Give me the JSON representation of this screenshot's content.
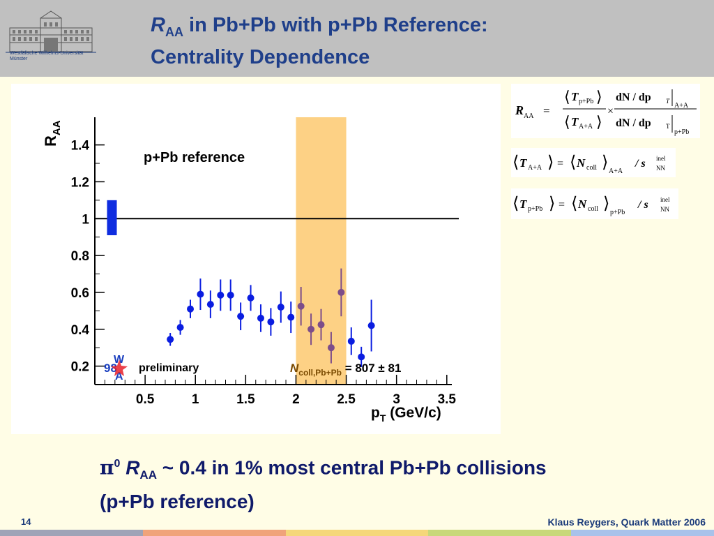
{
  "header": {
    "title_symbol": "R",
    "title_sub": "AA",
    "title_rest": " in Pb+Pb with p+Pb Reference:",
    "title_line2": "Centrality Dependence",
    "university_line1": "Westfälische Wilhelms-Universität",
    "university_line2": "Münster"
  },
  "chart_data": {
    "type": "scatter",
    "ylabel": "R",
    "ylabel_sub": "AA",
    "xlabel": "p",
    "xlabel_sub": "T",
    "xlabel_unit": " (GeV/c)",
    "xlim": [
      0.0,
      3.55
    ],
    "ylim": [
      0.1,
      1.55
    ],
    "x_ticks": [
      "0.5",
      "1",
      "1.5",
      "2",
      "2.5",
      "3",
      "3.5"
    ],
    "y_ticks": [
      "0.2",
      "0.4",
      "0.6",
      "0.8",
      "1",
      "1.2",
      "1.4"
    ],
    "reference_line": 1.0,
    "annotation": "p+Pb reference",
    "preliminary_label": "preliminary",
    "wa98_label": "98",
    "ncoll_label_N": "N",
    "ncoll_label_sub": "coll,Pb+Pb",
    "ncoll_label_value": " = 807 ± 81",
    "highlight_band": {
      "x_min": 2.0,
      "x_max": 2.5,
      "color": "#fdd185"
    },
    "normalization_box": {
      "x": 0.17,
      "y_min": 0.91,
      "y_max": 1.1,
      "color": "#0f2de0"
    },
    "series": [
      {
        "color": "#0a1de0",
        "points": [
          {
            "x": 0.75,
            "y": 0.345,
            "err": 0.035
          },
          {
            "x": 0.85,
            "y": 0.41,
            "err": 0.04
          },
          {
            "x": 0.95,
            "y": 0.51,
            "err": 0.05
          },
          {
            "x": 1.05,
            "y": 0.59,
            "err": 0.085
          },
          {
            "x": 1.15,
            "y": 0.535,
            "err": 0.075
          },
          {
            "x": 1.25,
            "y": 0.585,
            "err": 0.085
          },
          {
            "x": 1.35,
            "y": 0.585,
            "err": 0.085
          },
          {
            "x": 1.45,
            "y": 0.47,
            "err": 0.075
          },
          {
            "x": 1.55,
            "y": 0.57,
            "err": 0.07
          },
          {
            "x": 1.65,
            "y": 0.46,
            "err": 0.075
          },
          {
            "x": 1.75,
            "y": 0.44,
            "err": 0.075
          },
          {
            "x": 1.85,
            "y": 0.52,
            "err": 0.085
          },
          {
            "x": 1.95,
            "y": 0.465,
            "err": 0.085
          },
          {
            "x": 2.05,
            "y": 0.525,
            "err": 0.105
          },
          {
            "x": 2.15,
            "y": 0.4,
            "err": 0.085
          },
          {
            "x": 2.25,
            "y": 0.425,
            "err": 0.085
          },
          {
            "x": 2.35,
            "y": 0.3,
            "err": 0.085
          },
          {
            "x": 2.45,
            "y": 0.6,
            "err": 0.13
          },
          {
            "x": 2.55,
            "y": 0.335,
            "err": 0.075
          },
          {
            "x": 2.65,
            "y": 0.25,
            "err": 0.055
          },
          {
            "x": 2.75,
            "y": 0.42,
            "err": 0.14
          }
        ]
      }
    ]
  },
  "formula1": {
    "lhs": "R",
    "lhs_sub": "AA",
    "eq": "=",
    "num_T": "T",
    "num_T_sub": "p+Pb",
    "den_T": "T",
    "den_T_sub": "A+A",
    "times": "×",
    "num_d": "dN / dp",
    "num_d_sub": "T",
    "num_bar_sub": "A+A",
    "den_d": "dN / dp",
    "den_d_sub": "T",
    "den_bar_sub": "p+Pb"
  },
  "formula2": {
    "T": "T",
    "T_sub": "A+A",
    "eq": "=",
    "N": "N",
    "N_sub": "coll",
    "avg_sub": "A+A",
    "div": "/ s",
    "s_sup": "inel",
    "s_sub": "NN"
  },
  "formula3": {
    "T": "T",
    "T_sub": "p+Pb",
    "eq": "=",
    "N": "N",
    "N_sub": "coll",
    "avg_sub": "p+Pb",
    "div": "/ s",
    "s_sup": "inel",
    "s_sub": "NN"
  },
  "bottom": {
    "pi": "π",
    "pi_sup": "0",
    "R": "R",
    "R_sub": "AA",
    "rest": " ~ 0.4 in 1% most central Pb+Pb collisions",
    "line2": "(p+Pb reference)"
  },
  "footer": {
    "page": "14",
    "author": "Klaus Reygers, Quark Matter 2006",
    "bar_colors": [
      "#9fa3b7",
      "#f0a37a",
      "#f5d77a",
      "#c8d87a",
      "#a9c2ea"
    ]
  }
}
